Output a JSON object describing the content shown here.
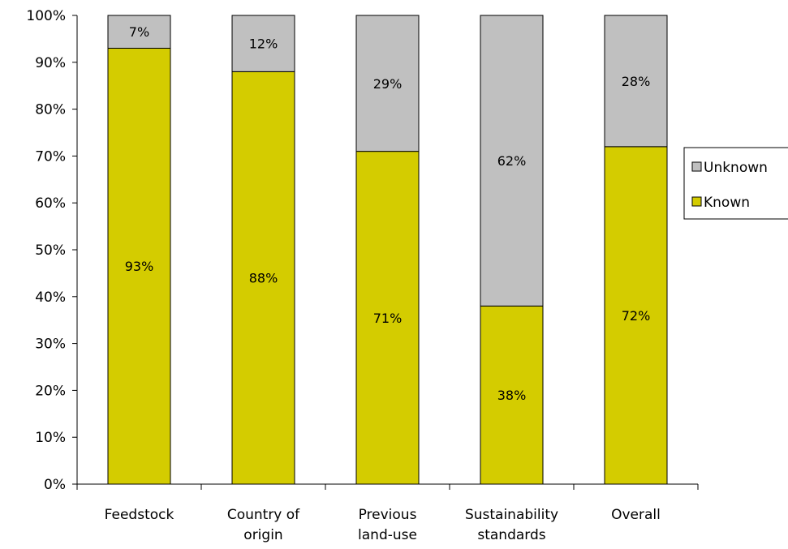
{
  "chart_data": {
    "type": "bar",
    "stacked": true,
    "percent": true,
    "categories": [
      [
        "Feedstock"
      ],
      [
        "Country of",
        "origin"
      ],
      [
        "Previous",
        "land-use"
      ],
      [
        "Sustainability",
        "standards"
      ],
      [
        "Overall"
      ]
    ],
    "series": [
      {
        "name": "Known",
        "values": [
          93,
          88,
          71,
          38,
          72
        ],
        "labels": [
          "93%",
          "88%",
          "71%",
          "38%",
          "72%"
        ],
        "color": "#d4cc00"
      },
      {
        "name": "Unknown",
        "values": [
          7,
          12,
          29,
          62,
          28
        ],
        "labels": [
          "7%",
          "12%",
          "29%",
          "62%",
          "28%"
        ],
        "color": "#c0c0c0"
      }
    ],
    "ylim": [
      0,
      100
    ],
    "yticks": [
      "0%",
      "10%",
      "20%",
      "30%",
      "40%",
      "50%",
      "60%",
      "70%",
      "80%",
      "90%",
      "100%"
    ],
    "grid": false,
    "legend": {
      "position": "right",
      "entries": [
        "Unknown",
        "Known"
      ]
    }
  }
}
